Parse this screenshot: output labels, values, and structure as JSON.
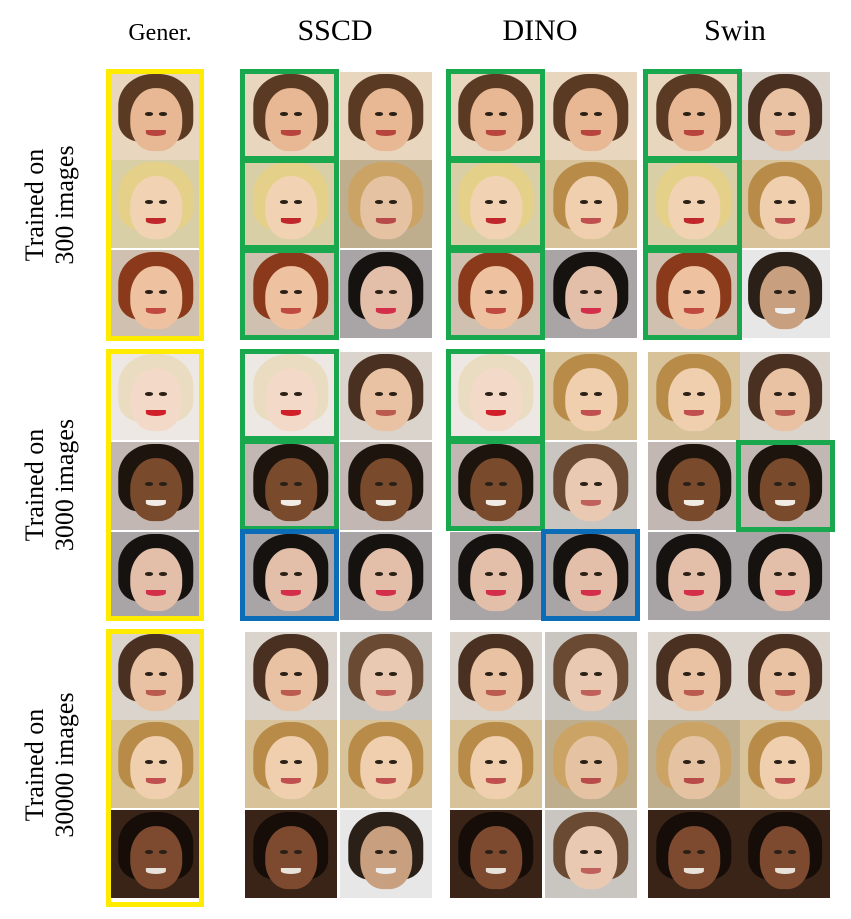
{
  "figure": {
    "columns": [
      {
        "key": "gener",
        "label": "Gener."
      },
      {
        "key": "sscd",
        "label": "SSCD"
      },
      {
        "key": "dino",
        "label": "DINO"
      },
      {
        "key": "swin",
        "label": "Swin"
      }
    ],
    "rows": [
      {
        "key": "r300",
        "label_line1": "Trained on",
        "label_line2": "300 images"
      },
      {
        "key": "r3000",
        "label_line1": "Trained on",
        "label_line2": "3000 images"
      },
      {
        "key": "r30000",
        "label_line1": "Trained on",
        "label_line2": "30000 images"
      }
    ],
    "colors": {
      "generated_frame": "#ffeb00",
      "match_frame": "#1aa84e",
      "alt_match_frame": "#0b6cb8"
    }
  }
}
